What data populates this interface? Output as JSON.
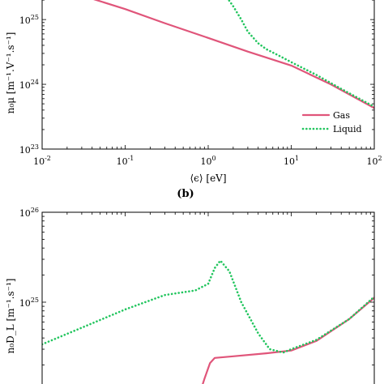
{
  "chart_data": [
    {
      "panel": "a",
      "type": "line",
      "x_scale": "log",
      "y_scale": "log",
      "xlim": [
        0.01,
        100
      ],
      "ylim": [
        1e+23,
        3e+25
      ],
      "xlabel": "⟨ϵ⟩ [eV]",
      "ylabel": "n₀μ [m⁻¹.V⁻¹.s⁻¹]",
      "x_ticks": [
        {
          "value": 0.01,
          "base": "10",
          "exp": "-2"
        },
        {
          "value": 0.1,
          "base": "10",
          "exp": "-1"
        },
        {
          "value": 1,
          "base": "10",
          "exp": "0"
        },
        {
          "value": 10,
          "base": "10",
          "exp": "1"
        },
        {
          "value": 100,
          "base": "10",
          "exp": "2"
        }
      ],
      "y_ticks": [
        {
          "value": 1e+23,
          "base": "10",
          "exp": "23"
        },
        {
          "value": 1e+24,
          "base": "10",
          "exp": "24"
        },
        {
          "value": 1e+25,
          "base": "10",
          "exp": "25"
        }
      ],
      "legend": {
        "position": "bottom-right",
        "entries": [
          "Gas",
          "Liquid"
        ]
      },
      "series": [
        {
          "name": "Gas",
          "color": "#e0557a",
          "style": "solid",
          "points": [
            [
              0.04,
              2.1e+25
            ],
            [
              0.1,
              1.45e+25
            ],
            [
              0.3,
              8.8e+24
            ],
            [
              1,
              5.2e+24
            ],
            [
              3,
              3.2e+24
            ],
            [
              10,
              1.95e+24
            ],
            [
              30,
              1e+24
            ],
            [
              100,
              4.3e+23
            ]
          ]
        },
        {
          "name": "Liquid",
          "color": "#22c55e",
          "style": "dotted",
          "points": [
            [
              1.6,
              2.4e+25
            ],
            [
              2,
              1.6e+25
            ],
            [
              2.5,
              1e+25
            ],
            [
              3,
              6.5e+24
            ],
            [
              4,
              4.3e+24
            ],
            [
              5,
              3.5e+24
            ],
            [
              7,
              2.8e+24
            ],
            [
              10,
              2.2e+24
            ],
            [
              20,
              1.4e+24
            ],
            [
              40,
              8.5e+23
            ],
            [
              100,
              4.5e+23
            ]
          ]
        }
      ]
    },
    {
      "panel": "b",
      "panel_label": "(b)",
      "type": "line",
      "x_scale": "log",
      "y_scale": "log",
      "xlim": [
        0.01,
        100
      ],
      "ylim": [
        1e+24,
        1e+26
      ],
      "ylabel": "n₀D_L [m⁻¹.s⁻¹]",
      "y_ticks": [
        {
          "value": 1e+25,
          "base": "10",
          "exp": "25"
        },
        {
          "value": 1e+26,
          "base": "10",
          "exp": "26"
        }
      ],
      "series": [
        {
          "name": "Gas",
          "color": "#e0557a",
          "style": "solid",
          "points": [
            [
              0.8,
              1e+24
            ],
            [
              0.9,
              1.4e+24
            ],
            [
              1.05,
              2.1e+24
            ],
            [
              1.2,
              2.4e+24
            ],
            [
              2,
              2.5e+24
            ],
            [
              5,
              2.7e+24
            ],
            [
              10,
              2.9e+24
            ],
            [
              20,
              3.7e+24
            ],
            [
              50,
              6.5e+24
            ],
            [
              100,
              1.12e+25
            ]
          ]
        },
        {
          "name": "Liquid",
          "color": "#22c55e",
          "style": "dotted",
          "points": [
            [
              0.01,
              3.4e+24
            ],
            [
              0.03,
              5.2e+24
            ],
            [
              0.1,
              8.3e+24
            ],
            [
              0.3,
              1.2e+25
            ],
            [
              0.7,
              1.35e+25
            ],
            [
              1,
              1.6e+25
            ],
            [
              1.2,
              2.4e+25
            ],
            [
              1.4,
              2.9e+25
            ],
            [
              1.8,
              2.2e+25
            ],
            [
              2.5,
              1e+25
            ],
            [
              4,
              4.5e+24
            ],
            [
              5.5,
              3e+24
            ],
            [
              8,
              2.75e+24
            ],
            [
              10,
              3e+24
            ],
            [
              20,
              3.8e+24
            ],
            [
              50,
              6.5e+24
            ],
            [
              100,
              1.15e+25
            ]
          ]
        }
      ]
    }
  ]
}
